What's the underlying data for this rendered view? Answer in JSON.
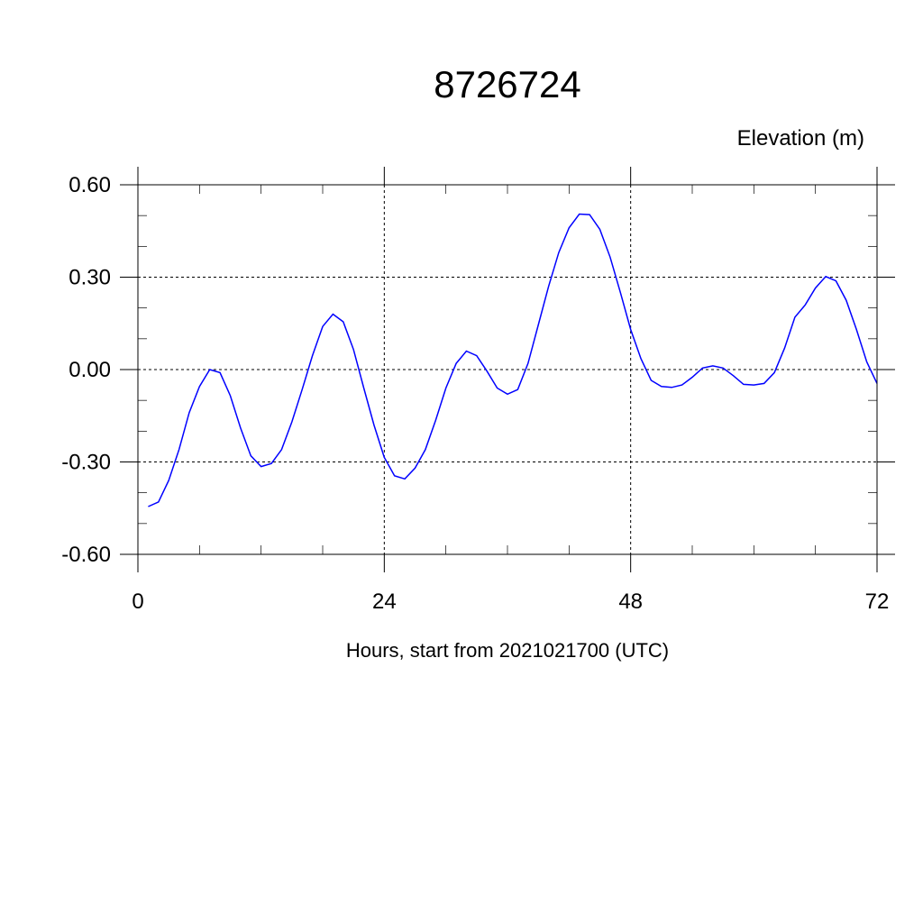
{
  "chart_data": {
    "type": "line",
    "title": "8726724",
    "ylabel": "Elevation (m)",
    "xlabel": "Hours, start from 2021021700 (UTC)",
    "xlim": [
      0,
      72
    ],
    "ylim": [
      -0.6,
      0.6
    ],
    "xticks": [
      0,
      24,
      48,
      72
    ],
    "xtick_labels": [
      "0",
      "24",
      "48",
      "72"
    ],
    "x_minor_step": 6,
    "yticks": [
      -0.6,
      -0.3,
      0.0,
      0.3,
      0.6
    ],
    "ytick_labels": [
      "-0.60",
      "-0.30",
      "0.00",
      "0.30",
      "0.60"
    ],
    "y_minor_step": 0.1,
    "grid": true,
    "series": [
      {
        "color": "#0000ff",
        "x": [
          1,
          2,
          3,
          4,
          5,
          6,
          7,
          8,
          9,
          10,
          11,
          12,
          13,
          14,
          15,
          16,
          17,
          18,
          19,
          20,
          21,
          22,
          23,
          24,
          25,
          26,
          27,
          28,
          29,
          30,
          31,
          32,
          33,
          34,
          35,
          36,
          37,
          38,
          39,
          40,
          41,
          42,
          43,
          44,
          45,
          46,
          47,
          48,
          49,
          50,
          51,
          52,
          53,
          54,
          55,
          56,
          57,
          58,
          59,
          60,
          61,
          62,
          63,
          64,
          65,
          66,
          67,
          68,
          69,
          70,
          71,
          72
        ],
        "y": [
          -0.445,
          -0.43,
          -0.36,
          -0.26,
          -0.14,
          -0.055,
          0.0,
          -0.01,
          -0.085,
          -0.19,
          -0.28,
          -0.315,
          -0.305,
          -0.26,
          -0.17,
          -0.065,
          0.045,
          0.14,
          0.18,
          0.155,
          0.065,
          -0.06,
          -0.18,
          -0.285,
          -0.345,
          -0.355,
          -0.32,
          -0.26,
          -0.165,
          -0.06,
          0.02,
          0.06,
          0.045,
          -0.005,
          -0.06,
          -0.08,
          -0.065,
          0.02,
          0.145,
          0.27,
          0.38,
          0.46,
          0.505,
          0.503,
          0.455,
          0.365,
          0.25,
          0.13,
          0.035,
          -0.035,
          -0.055,
          -0.058,
          -0.05,
          -0.025,
          0.005,
          0.012,
          0.005,
          -0.02,
          -0.048,
          -0.05,
          -0.045,
          -0.01,
          0.07,
          0.17,
          0.21,
          0.265,
          0.302,
          0.288,
          0.225,
          0.13,
          0.025,
          -0.045
        ]
      }
    ]
  }
}
